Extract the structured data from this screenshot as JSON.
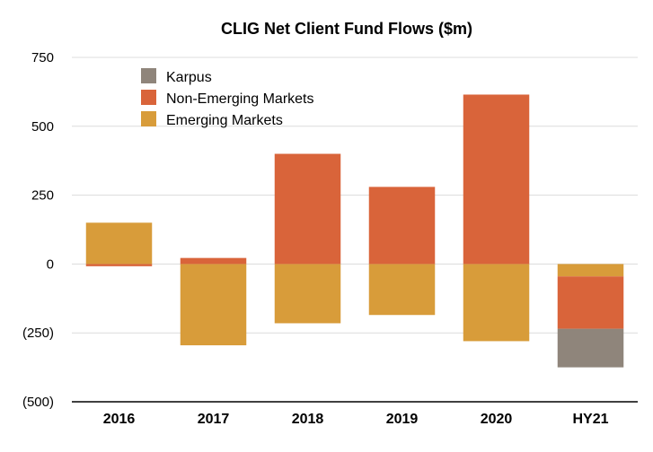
{
  "chart_data": {
    "type": "bar",
    "stacked": true,
    "title": "CLIG Net Client Fund Flows ($m)",
    "xlabel": "",
    "ylabel": "",
    "categories": [
      "2016",
      "2017",
      "2018",
      "2019",
      "2020",
      "HY21"
    ],
    "ylim": [
      -500,
      750
    ],
    "yticks": [
      750,
      500,
      250,
      0,
      -250,
      -500
    ],
    "ytick_labels": [
      "750",
      "500",
      "250",
      "0",
      "(250)",
      "(500)"
    ],
    "grid": true,
    "legend_position": "top-left",
    "series": [
      {
        "name": "Karpus",
        "color": "#8f857b",
        "values": [
          0,
          0,
          0,
          0,
          0,
          -140
        ]
      },
      {
        "name": "Non-Emerging Markets",
        "color": "#d9643a",
        "values": [
          -8,
          22,
          400,
          280,
          615,
          -190
        ]
      },
      {
        "name": "Emerging Markets",
        "color": "#d89c3a",
        "values": [
          150,
          -295,
          -215,
          -185,
          -280,
          -45
        ]
      }
    ],
    "legend_order": [
      "Karpus",
      "Non-Emerging Markets",
      "Emerging Markets"
    ]
  }
}
